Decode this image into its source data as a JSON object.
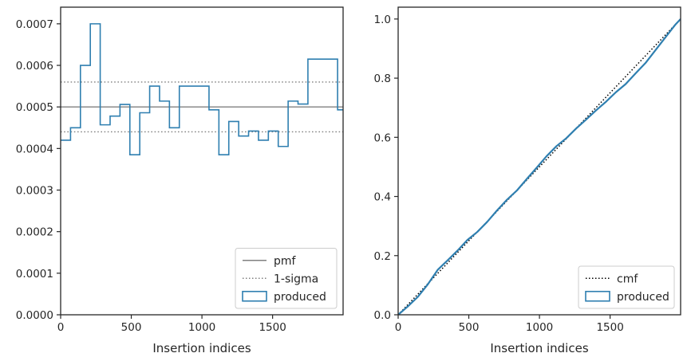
{
  "chart_data": [
    {
      "type": "line",
      "panel": "left",
      "xlabel": "Insertion indices",
      "ylabel": "",
      "xlim": [
        0,
        1999
      ],
      "ylim": [
        0,
        0.00074
      ],
      "x_ticks": [
        0,
        500,
        1000,
        1500
      ],
      "x_tick_labels": [
        "0",
        "500",
        "1000",
        "1500"
      ],
      "y_ticks": [
        0,
        0.0001,
        0.0002,
        0.0003,
        0.0004,
        0.0005,
        0.0006,
        0.0007
      ],
      "y_tick_labels": [
        "0.0000",
        "0.0001",
        "0.0002",
        "0.0003",
        "0.0004",
        "0.0005",
        "0.0006",
        "0.0007"
      ],
      "grid": false,
      "legend_position": "bottom-right",
      "reference_lines": [
        {
          "name": "pmf",
          "y": 0.0005,
          "color": "#808080",
          "style": "solid"
        },
        {
          "name": "1-sigma",
          "y": 0.00056,
          "color": "#808080",
          "style": "dotted"
        },
        {
          "name": "1-sigma",
          "y": 0.00044,
          "color": "#808080",
          "style": "dotted"
        }
      ],
      "series": [
        {
          "name": "produced",
          "kind": "step-histogram",
          "color": "#2f7fb0",
          "bin_edges": [
            0,
            70,
            140,
            210,
            280,
            350,
            420,
            490,
            560,
            630,
            700,
            770,
            840,
            910,
            980,
            1050,
            1120,
            1190,
            1260,
            1330,
            1400,
            1470,
            1540,
            1610,
            1680,
            1750,
            1820,
            1890,
            1960,
            1999
          ],
          "values": [
            0.00042,
            0.00045,
            0.0006,
            0.0007,
            0.000457,
            0.000478,
            0.000506,
            0.000385,
            0.000486,
            0.00055,
            0.000514,
            0.00045,
            0.00055,
            0.00055,
            0.00055,
            0.000493,
            0.000385,
            0.000465,
            0.00043,
            0.000442,
            0.00042,
            0.000442,
            0.000405,
            0.000514,
            0.000507,
            0.000615,
            0.000615,
            0.000615,
            0.000493
          ]
        }
      ],
      "legend": [
        {
          "label": "pmf",
          "kind": "line",
          "color": "#808080",
          "style": "solid"
        },
        {
          "label": "1-sigma",
          "kind": "line",
          "color": "#808080",
          "style": "dotted"
        },
        {
          "label": "produced",
          "kind": "patch",
          "color": "#2f7fb0"
        }
      ]
    },
    {
      "type": "line",
      "panel": "right",
      "xlabel": "Insertion indices",
      "ylabel": "",
      "xlim": [
        0,
        1999
      ],
      "ylim": [
        0,
        1.04
      ],
      "x_ticks": [
        0,
        500,
        1000,
        1500
      ],
      "x_tick_labels": [
        "0",
        "500",
        "1000",
        "1500"
      ],
      "y_ticks": [
        0,
        0.2,
        0.4,
        0.6,
        0.8,
        1.0
      ],
      "y_tick_labels": [
        "0.0",
        "0.2",
        "0.4",
        "0.6",
        "0.8",
        "1.0"
      ],
      "grid": false,
      "legend_position": "bottom-right",
      "series": [
        {
          "name": "cmf",
          "kind": "line",
          "color": "#000000",
          "style": "dotted",
          "x": [
            0,
            1999
          ],
          "y": [
            0,
            1.0
          ]
        },
        {
          "name": "produced",
          "kind": "step",
          "color": "#2f7fb0",
          "x": [
            0,
            70,
            140,
            210,
            280,
            350,
            420,
            490,
            560,
            630,
            700,
            770,
            840,
            910,
            980,
            1050,
            1120,
            1190,
            1260,
            1330,
            1400,
            1470,
            1540,
            1610,
            1680,
            1750,
            1820,
            1890,
            1960,
            1999
          ],
          "y": [
            0,
            0.029,
            0.061,
            0.103,
            0.152,
            0.184,
            0.217,
            0.253,
            0.28,
            0.314,
            0.353,
            0.389,
            0.42,
            0.459,
            0.497,
            0.536,
            0.57,
            0.597,
            0.63,
            0.66,
            0.691,
            0.72,
            0.752,
            0.78,
            0.816,
            0.851,
            0.894,
            0.937,
            0.98,
            1.0
          ]
        }
      ],
      "legend": [
        {
          "label": "cmf",
          "kind": "line",
          "color": "#000000",
          "style": "dotted"
        },
        {
          "label": "produced",
          "kind": "patch",
          "color": "#2f7fb0"
        }
      ]
    }
  ]
}
